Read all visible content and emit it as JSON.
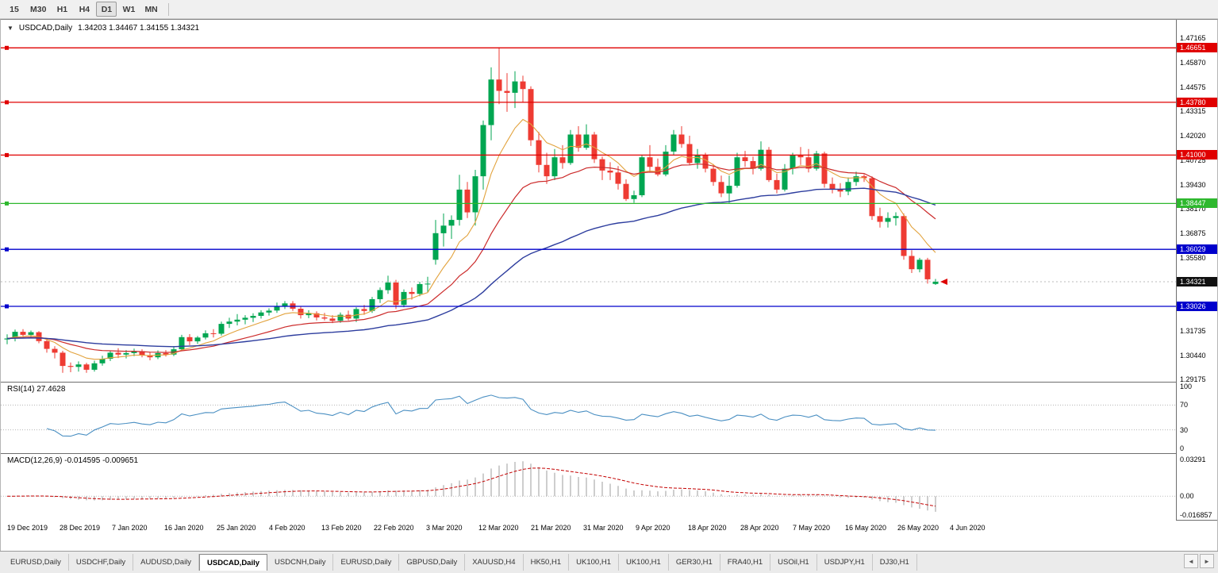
{
  "toolbar": {
    "timeframes": [
      "15",
      "M30",
      "H1",
      "H4",
      "D1",
      "W1",
      "MN"
    ],
    "active": "D1"
  },
  "chart": {
    "marker": "▼",
    "title": "USDCAD,Daily",
    "ohlc": "1.34203 1.34467 1.34155 1.34321"
  },
  "chart_data": {
    "type": "candlestick",
    "symbol": "USDCAD",
    "timeframe": "Daily",
    "colors": {
      "bull": "#00a651",
      "bear": "#ee3b33",
      "bid_line": "#bbbbbb"
    },
    "price_axis": {
      "min": 1.29175,
      "max": 1.47165,
      "ticks": [
        "1.47165",
        "1.45870",
        "1.44575",
        "1.43315",
        "1.42020",
        "1.40725",
        "1.39430",
        "1.38170",
        "1.36875",
        "1.35580",
        "1.34285",
        "1.32990",
        "1.31735",
        "1.30440",
        "1.29175"
      ]
    },
    "date_labels": [
      "19 Dec 2019",
      "28 Dec 2019",
      "7 Jan 2020",
      "16 Jan 2020",
      "25 Jan 2020",
      "4 Feb 2020",
      "13 Feb 2020",
      "22 Feb 2020",
      "3 Mar 2020",
      "12 Mar 2020",
      "21 Mar 2020",
      "31 Mar 2020",
      "9 Apr 2020",
      "18 Apr 2020",
      "28 Apr 2020",
      "7 May 2020",
      "16 May 2020",
      "26 May 2020",
      "4 Jun 2020"
    ],
    "hlines": [
      {
        "label": "1.46651",
        "price": 1.46651,
        "color": "#e00000"
      },
      {
        "label": "1.43780",
        "price": 1.4378,
        "color": "#e00000"
      },
      {
        "label": "1.41000",
        "price": 1.41,
        "color": "#e00000"
      },
      {
        "label": "1.38447",
        "price": 1.38447,
        "color": "#2eb82e"
      },
      {
        "label": "1.36029",
        "price": 1.36029,
        "color": "#0000cc"
      },
      {
        "label": "1.33026",
        "price": 1.33026,
        "color": "#0000cc"
      }
    ],
    "current_price": {
      "label": "1.34321",
      "value": 1.34321,
      "tag_color": "#111111",
      "marker_color": "#dd0000"
    },
    "moving_averages": [
      {
        "name": "ma-fast",
        "period": 8,
        "color": "#e2a23c",
        "width": 1.1
      },
      {
        "name": "ma-mid",
        "period": 21,
        "color": "#cc2b2b",
        "width": 1.2
      },
      {
        "name": "ma-slow",
        "period": 55,
        "color": "#2d3d9e",
        "width": 1.4
      }
    ],
    "candles": [
      [
        1.3128,
        1.3155,
        1.3103,
        1.3133
      ],
      [
        1.3133,
        1.318,
        1.3118,
        1.3168
      ],
      [
        1.3168,
        1.3182,
        1.314,
        1.3152
      ],
      [
        1.3152,
        1.3175,
        1.3142,
        1.3166
      ],
      [
        1.3166,
        1.3172,
        1.3108,
        1.3119
      ],
      [
        1.3119,
        1.3135,
        1.3058,
        1.3078
      ],
      [
        1.3078,
        1.3092,
        1.3028,
        1.3058
      ],
      [
        1.3058,
        1.3068,
        1.2952,
        1.2988
      ],
      [
        1.2988,
        1.3006,
        1.2955,
        1.2983
      ],
      [
        1.2983,
        1.3012,
        1.2958,
        1.2996
      ],
      [
        1.2996,
        1.3005,
        1.2952,
        1.2968
      ],
      [
        1.2968,
        1.3016,
        1.2958,
        1.3002
      ],
      [
        1.3002,
        1.3042,
        1.299,
        1.3026
      ],
      [
        1.3026,
        1.307,
        1.3014,
        1.3058
      ],
      [
        1.3058,
        1.3082,
        1.303,
        1.3048
      ],
      [
        1.3048,
        1.3072,
        1.3028,
        1.3056
      ],
      [
        1.3056,
        1.308,
        1.304,
        1.3066
      ],
      [
        1.3066,
        1.3076,
        1.3034,
        1.3044
      ],
      [
        1.3044,
        1.3062,
        1.3018,
        1.3034
      ],
      [
        1.3034,
        1.307,
        1.3024,
        1.3056
      ],
      [
        1.3056,
        1.3072,
        1.3038,
        1.3048
      ],
      [
        1.3048,
        1.3092,
        1.304,
        1.3076
      ],
      [
        1.3076,
        1.3152,
        1.3068,
        1.314
      ],
      [
        1.314,
        1.3156,
        1.3098,
        1.3118
      ],
      [
        1.3118,
        1.3146,
        1.3104,
        1.3138
      ],
      [
        1.3138,
        1.3176,
        1.3128,
        1.316
      ],
      [
        1.316,
        1.3182,
        1.3138,
        1.3158
      ],
      [
        1.3158,
        1.3222,
        1.3148,
        1.321
      ],
      [
        1.321,
        1.3242,
        1.3188,
        1.3222
      ],
      [
        1.3222,
        1.3262,
        1.3202,
        1.3232
      ],
      [
        1.3232,
        1.3256,
        1.3208,
        1.3242
      ],
      [
        1.3242,
        1.3266,
        1.322,
        1.3252
      ],
      [
        1.3252,
        1.3282,
        1.3238,
        1.327
      ],
      [
        1.327,
        1.3292,
        1.3254,
        1.328
      ],
      [
        1.328,
        1.3322,
        1.3268,
        1.3304
      ],
      [
        1.3304,
        1.333,
        1.3288,
        1.3318
      ],
      [
        1.3318,
        1.333,
        1.3278,
        1.329
      ],
      [
        1.329,
        1.3302,
        1.3238,
        1.3256
      ],
      [
        1.3256,
        1.3282,
        1.324,
        1.3266
      ],
      [
        1.3266,
        1.3276,
        1.3228,
        1.3244
      ],
      [
        1.3244,
        1.3268,
        1.3228,
        1.3238
      ],
      [
        1.3238,
        1.3256,
        1.3214,
        1.3226
      ],
      [
        1.3226,
        1.327,
        1.3216,
        1.3258
      ],
      [
        1.3258,
        1.328,
        1.3228,
        1.3238
      ],
      [
        1.3238,
        1.3298,
        1.322,
        1.3288
      ],
      [
        1.3288,
        1.331,
        1.3258,
        1.3278
      ],
      [
        1.3278,
        1.3352,
        1.3268,
        1.334
      ],
      [
        1.334,
        1.3402,
        1.332,
        1.3388
      ],
      [
        1.3388,
        1.3464,
        1.3368,
        1.3428
      ],
      [
        1.3428,
        1.3442,
        1.3288,
        1.331
      ],
      [
        1.331,
        1.3392,
        1.3298,
        1.3378
      ],
      [
        1.3378,
        1.3402,
        1.3338,
        1.3368
      ],
      [
        1.3368,
        1.3432,
        1.3356,
        1.342
      ],
      [
        1.342,
        1.3458,
        1.3378,
        1.3422
      ],
      [
        1.3548,
        1.3758,
        1.3522,
        1.3688
      ],
      [
        1.3688,
        1.3792,
        1.3618,
        1.3728
      ],
      [
        1.3728,
        1.3782,
        1.3658,
        1.3758
      ],
      [
        1.3758,
        1.3996,
        1.3728,
        1.3918
      ],
      [
        1.3918,
        1.3958,
        1.3768,
        1.3798
      ],
      [
        1.3798,
        1.4022,
        1.3728,
        1.3988
      ],
      [
        1.3988,
        1.4282,
        1.3918,
        1.4258
      ],
      [
        1.4258,
        1.4562,
        1.4178,
        1.4498
      ],
      [
        1.4498,
        1.4668,
        1.4368,
        1.4438
      ],
      [
        1.4438,
        1.4532,
        1.4328,
        1.4428
      ],
      [
        1.4428,
        1.4542,
        1.4348,
        1.4488
      ],
      [
        1.4488,
        1.4518,
        1.4378,
        1.4448
      ],
      [
        1.4448,
        1.4462,
        1.4148,
        1.4178
      ],
      [
        1.4178,
        1.4222,
        1.4008,
        1.4048
      ],
      [
        1.4048,
        1.4112,
        1.3948,
        1.3988
      ],
      [
        1.3988,
        1.4132,
        1.3968,
        1.4088
      ],
      [
        1.4088,
        1.4152,
        1.4028,
        1.4058
      ],
      [
        1.4058,
        1.4232,
        1.4048,
        1.4208
      ],
      [
        1.4208,
        1.4252,
        1.4118,
        1.4138
      ],
      [
        1.4138,
        1.4262,
        1.4128,
        1.4208
      ],
      [
        1.4208,
        1.4222,
        1.4058,
        1.4078
      ],
      [
        1.4078,
        1.4092,
        1.3968,
        1.4018
      ],
      [
        1.4018,
        1.4062,
        1.3968,
        1.4008
      ],
      [
        1.4008,
        1.4042,
        1.3918,
        1.3948
      ],
      [
        1.3948,
        1.3972,
        1.3858,
        1.3868
      ],
      [
        1.3868,
        1.3912,
        1.3848,
        1.3888
      ],
      [
        1.3888,
        1.4102,
        1.3878,
        1.4088
      ],
      [
        1.4088,
        1.4152,
        1.4008,
        1.4038
      ],
      [
        1.4038,
        1.4082,
        1.3988,
        1.3998
      ],
      [
        1.3998,
        1.4152,
        1.3988,
        1.4118
      ],
      [
        1.4118,
        1.4232,
        1.4098,
        1.4208
      ],
      [
        1.4208,
        1.4252,
        1.4138,
        1.4158
      ],
      [
        1.4158,
        1.4202,
        1.4048,
        1.4058
      ],
      [
        1.4058,
        1.4132,
        1.4028,
        1.4098
      ],
      [
        1.4098,
        1.4112,
        1.4008,
        1.4028
      ],
      [
        1.4028,
        1.4052,
        1.3938,
        1.3958
      ],
      [
        1.3958,
        1.3992,
        1.3878,
        1.3898
      ],
      [
        1.3898,
        1.3992,
        1.3848,
        1.3938
      ],
      [
        1.3938,
        1.4112,
        1.3928,
        1.4088
      ],
      [
        1.4088,
        1.4122,
        1.4038,
        1.4068
      ],
      [
        1.4068,
        1.4092,
        1.3998,
        1.4028
      ],
      [
        1.4028,
        1.4172,
        1.4018,
        1.4128
      ],
      [
        1.4128,
        1.4142,
        1.3958,
        1.3968
      ],
      [
        1.3968,
        1.4002,
        1.3898,
        1.3918
      ],
      [
        1.3918,
        1.4052,
        1.3908,
        1.4028
      ],
      [
        1.4028,
        1.4112,
        1.3998,
        1.4098
      ],
      [
        1.4098,
        1.4142,
        1.4048,
        1.4088
      ],
      [
        1.4088,
        1.4132,
        1.4008,
        1.4028
      ],
      [
        1.4028,
        1.4122,
        1.4018,
        1.4108
      ],
      [
        1.4108,
        1.4118,
        1.3928,
        1.3948
      ],
      [
        1.3948,
        1.3982,
        1.3898,
        1.3918
      ],
      [
        1.3918,
        1.3952,
        1.3878,
        1.3908
      ],
      [
        1.3908,
        1.3982,
        1.3888,
        1.3958
      ],
      [
        1.3958,
        1.4012,
        1.3938,
        1.3988
      ],
      [
        1.3988,
        1.3998,
        1.3958,
        1.3978
      ],
      [
        1.3978,
        1.3988,
        1.3758,
        1.3778
      ],
      [
        1.3778,
        1.3822,
        1.3718,
        1.3748
      ],
      [
        1.3748,
        1.3798,
        1.3718,
        1.3768
      ],
      [
        1.3768,
        1.3798,
        1.3728,
        1.3778
      ],
      [
        1.3778,
        1.3792,
        1.3548,
        1.3568
      ],
      [
        1.3568,
        1.3598,
        1.3478,
        1.3498
      ],
      [
        1.3498,
        1.3558,
        1.3482,
        1.3548
      ],
      [
        1.3548,
        1.3558,
        1.3422,
        1.3445
      ],
      [
        1.34203,
        1.34467,
        1.34155,
        1.34321
      ]
    ],
    "rsi": {
      "label": "RSI(14) 27.4628",
      "period": 14,
      "value": 27.4628,
      "color": "#4a8fc2",
      "guide_levels": [
        70,
        30
      ],
      "scale_ticks": [
        {
          "label": "100",
          "value": 100
        },
        {
          "label": "70",
          "value": 70
        },
        {
          "label": "30",
          "value": 30
        },
        {
          "label": "0",
          "value": 0
        }
      ]
    },
    "macd": {
      "label": "MACD(12,26,9) -0.014595 -0.009651",
      "fast": 12,
      "slow": 26,
      "signal_period": 9,
      "value": -0.014595,
      "signal_value": -0.009651,
      "axis_max": 0.03291,
      "axis_min": -0.016857,
      "histogram_color": "#9c9c9c",
      "signal_color": "#c40000",
      "scale_ticks": [
        {
          "label": "0.03291",
          "value": 0.03291
        },
        {
          "label": "0.00",
          "value": 0
        },
        {
          "label": "-0.016857",
          "value": -0.016857
        }
      ]
    }
  },
  "bottom_tabs": {
    "tabs": [
      "EURUSD,Daily",
      "USDCHF,Daily",
      "AUDUSD,Daily",
      "USDCAD,Daily",
      "USDCNH,Daily",
      "EURUSD,Daily",
      "GBPUSD,Daily",
      "XAUUSD,H4",
      "HK50,H1",
      "UK100,H1",
      "UK100,H1",
      "GER30,H1",
      "FRA40,H1",
      "USOil,H1",
      "USDJPY,H1",
      "DJ30,H1"
    ],
    "active_index": 3,
    "nav_left": "◄",
    "nav_right": "►"
  }
}
